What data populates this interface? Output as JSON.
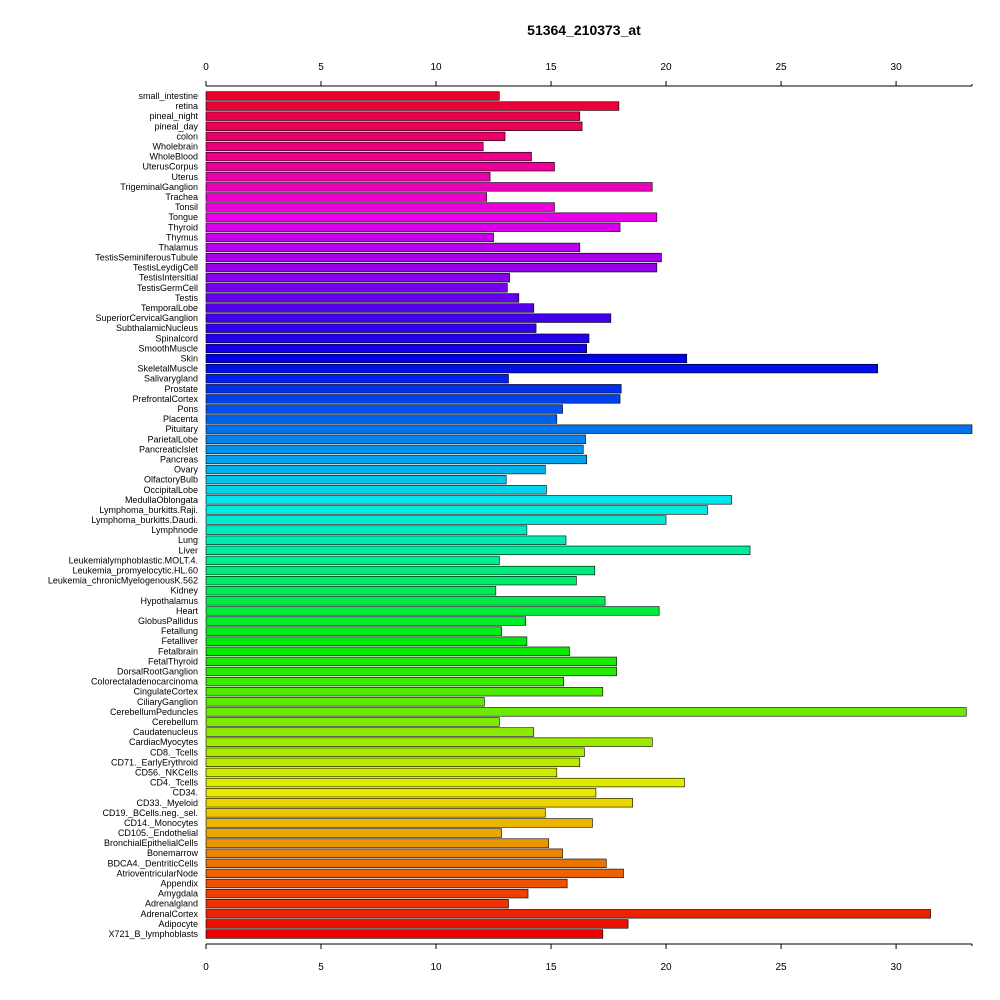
{
  "chart_data": {
    "type": "bar",
    "orientation": "horizontal",
    "title": "51364_210373_at",
    "xlabel": "",
    "ylabel": "",
    "xlim": [
      0,
      33.3
    ],
    "xticks": [
      0,
      5,
      10,
      15,
      20,
      25,
      30
    ],
    "grid": false,
    "legend": "none",
    "categories": [
      "small_intestine",
      "retina",
      "pineal_night",
      "pineal_day",
      "colon",
      "Wholebrain",
      "WholeBlood",
      "UterusCorpus",
      "Uterus",
      "TrigeminalGanglion",
      "Trachea",
      "Tonsil",
      "Tongue",
      "Thyroid",
      "Thymus",
      "Thalamus",
      "TestisSeminiferousTubule",
      "TestisLeydigCell",
      "TestisIntersitial",
      "TestisGermCell",
      "Testis",
      "TemporalLobe",
      "SuperiorCervicalGanglion",
      "SubthalamicNucleus",
      "Spinalcord",
      "SmoothMuscle",
      "Skin",
      "SkeletalMuscle",
      "Salivarygland",
      "Prostate",
      "PrefrontalCortex",
      "Pons",
      "Placenta",
      "Pituitary",
      "ParietalLobe",
      "PancreaticIslet",
      "Pancreas",
      "Ovary",
      "OlfactoryBulb",
      "OccipitalLobe",
      "MedullaOblongata",
      "Lymphoma_burkitts.Raji.",
      "Lymphoma_burkitts.Daudi.",
      "Lymphnode",
      "Lung",
      "Liver",
      "Leukemialymphoblastic.MOLT.4.",
      "Leukemia_promyelocytic.HL.60",
      "Leukemia_chronicMyelogenousK.562",
      "Kidney",
      "Hypothalamus",
      "Heart",
      "GlobusPallidus",
      "Fetallung",
      "Fetalliver",
      "Fetalbrain",
      "FetalThyroid",
      "DorsalRootGanglion",
      "Colorectaladenocarcinoma",
      "CingulateCortex",
      "CiliaryGanglion",
      "CerebellumPeduncles",
      "Cerebellum",
      "Caudatenucleus",
      "CardiacMyocytes",
      "CD8._Tcells",
      "CD71._EarlyErythroid",
      "CD56._NKCells",
      "CD4._Tcells",
      "CD34.",
      "CD33._Myeloid",
      "CD19._BCells.neg._sel.",
      "CD14._Monocytes",
      "CD105._Endothelial",
      "BronchialEpithelialCells",
      "Bonemarrow",
      "BDCA4._DentriticCells",
      "AtrioventricularNode",
      "Appendix",
      "Amygdala",
      "Adrenalgland",
      "AdrenalCortex",
      "Adipocyte",
      "X721_B_lymphoblasts"
    ],
    "values": [
      12.75,
      17.95,
      16.25,
      16.35,
      13.0,
      12.05,
      14.15,
      15.15,
      12.35,
      19.4,
      12.2,
      15.15,
      19.6,
      18.0,
      12.5,
      16.25,
      19.8,
      19.6,
      13.2,
      13.1,
      13.6,
      14.25,
      17.6,
      14.35,
      16.65,
      16.55,
      20.9,
      29.2,
      13.15,
      18.05,
      18.0,
      15.5,
      15.25,
      33.3,
      16.5,
      16.4,
      16.55,
      14.75,
      13.05,
      14.8,
      22.85,
      21.8,
      20.0,
      13.95,
      15.65,
      23.65,
      12.75,
      16.9,
      16.1,
      12.6,
      17.35,
      19.7,
      13.9,
      12.85,
      13.95,
      15.8,
      17.85,
      17.85,
      15.55,
      17.25,
      12.1,
      33.05,
      12.75,
      14.25,
      19.4,
      16.45,
      16.25,
      15.25,
      20.8,
      16.95,
      18.55,
      14.75,
      16.8,
      12.85,
      14.9,
      15.5,
      17.4,
      18.15,
      15.7,
      14.0,
      13.15,
      31.5,
      18.35,
      17.25
    ]
  }
}
